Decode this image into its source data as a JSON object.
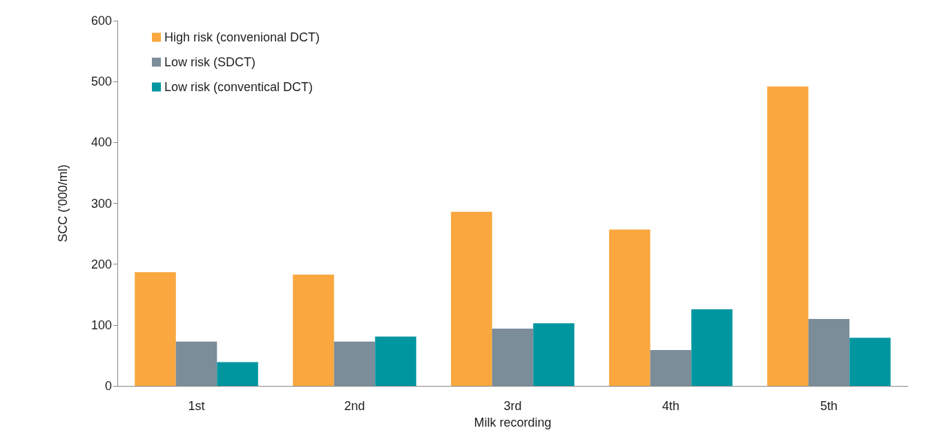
{
  "chart_data": {
    "type": "bar",
    "xlabel": "Milk recording",
    "ylabel": "SCC ('000/ml)",
    "categories": [
      "1st",
      "2nd",
      "3rd",
      "4th",
      "5th"
    ],
    "series": [
      {
        "name": "High risk (convenional DCT)",
        "color": "#f9a73e",
        "values": [
          187,
          183,
          286,
          257,
          492
        ]
      },
      {
        "name": "Low risk (SDCT)",
        "color": "#7a8d99",
        "values": [
          73,
          73,
          94,
          59,
          110
        ]
      },
      {
        "name": "Low risk (conventical DCT)",
        "color": "#00969f",
        "values": [
          39,
          81,
          103,
          126,
          79
        ]
      }
    ],
    "ylim": [
      0,
      600
    ],
    "yticks": [
      0,
      100,
      200,
      300,
      400,
      500,
      600
    ],
    "grid": false,
    "legend": "top left"
  }
}
